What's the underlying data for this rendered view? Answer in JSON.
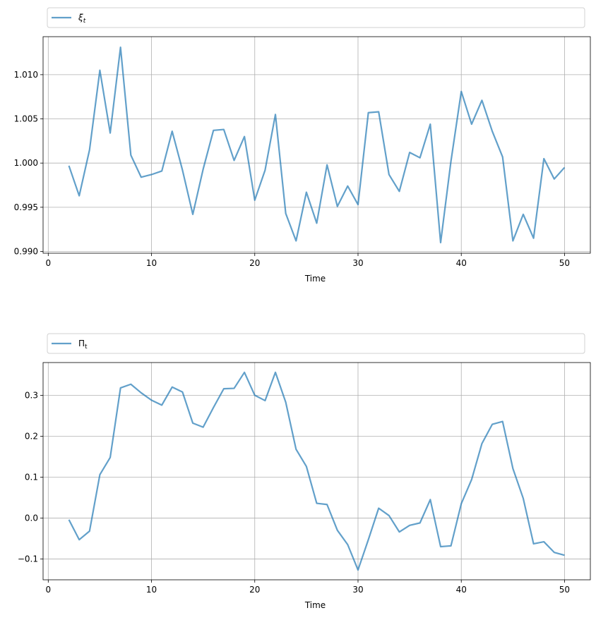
{
  "chart_data": [
    {
      "type": "line",
      "xlabel": "Time",
      "ylabel": "",
      "xlim": [
        -0.5,
        52.5
      ],
      "ylim": [
        0.9898,
        1.0143
      ],
      "xticks": [
        0,
        10,
        20,
        30,
        40,
        50
      ],
      "xtick_labels": [
        "0",
        "10",
        "20",
        "30",
        "40",
        "50"
      ],
      "yticks": [
        0.99,
        0.995,
        1.0,
        1.005,
        1.01
      ],
      "ytick_labels": [
        "0.990",
        "0.995",
        "1.000",
        "1.005",
        "1.010"
      ],
      "grid": true,
      "legend_position": "above-plot",
      "color": "#1f77b4",
      "series": [
        {
          "name": "ξt",
          "name_base": "ξ",
          "name_sub": "t",
          "x": [
            2,
            3,
            4,
            5,
            6,
            7,
            8,
            9,
            10,
            11,
            12,
            13,
            14,
            15,
            16,
            17,
            18,
            19,
            20,
            21,
            22,
            23,
            24,
            25,
            26,
            27,
            28,
            29,
            30,
            31,
            32,
            33,
            34,
            35,
            36,
            37,
            38,
            39,
            40,
            41,
            42,
            43,
            44,
            45,
            46,
            47,
            48,
            49,
            50
          ],
          "values": [
            0.9997,
            0.9963,
            1.0015,
            1.0105,
            1.0034,
            1.0131,
            1.0009,
            0.9984,
            0.9987,
            0.9991,
            1.0036,
            0.9992,
            0.9942,
            0.9993,
            1.0037,
            1.0038,
            1.0003,
            1.003,
            0.9958,
            0.9992,
            1.0055,
            0.9943,
            0.9912,
            0.9967,
            0.9932,
            0.9998,
            0.9951,
            0.9974,
            0.9953,
            1.0057,
            1.0058,
            0.9987,
            0.9968,
            1.0012,
            1.0006,
            1.0044,
            0.991,
            1.0002,
            1.0081,
            1.0044,
            1.0071,
            1.0036,
            1.0007,
            0.9912,
            0.9942,
            0.9915,
            1.0005,
            0.9982,
            0.9995
          ]
        }
      ]
    },
    {
      "type": "line",
      "xlabel": "Time",
      "ylabel": "",
      "xlim": [
        -0.5,
        52.5
      ],
      "ylim": [
        -0.151,
        0.38
      ],
      "xticks": [
        0,
        10,
        20,
        30,
        40,
        50
      ],
      "xtick_labels": [
        "0",
        "10",
        "20",
        "30",
        "40",
        "50"
      ],
      "yticks": [
        -0.1,
        0.0,
        0.1,
        0.2,
        0.3
      ],
      "ytick_labels": [
        "−0.1",
        "0.0",
        "0.1",
        "0.2",
        "0.3"
      ],
      "grid": true,
      "legend_position": "above-plot",
      "color": "#1f77b4",
      "series": [
        {
          "name": "Πt",
          "name_base": "Π",
          "name_sub": "t",
          "x": [
            2,
            3,
            4,
            5,
            6,
            7,
            8,
            9,
            10,
            11,
            12,
            13,
            14,
            15,
            16,
            17,
            18,
            19,
            20,
            21,
            22,
            23,
            24,
            25,
            26,
            27,
            28,
            29,
            30,
            31,
            32,
            33,
            34,
            35,
            36,
            37,
            38,
            39,
            40,
            41,
            42,
            43,
            44,
            45,
            46,
            47,
            48,
            49,
            50
          ],
          "values": [
            -0.004,
            -0.053,
            -0.032,
            0.106,
            0.148,
            0.318,
            0.327,
            0.306,
            0.288,
            0.276,
            0.32,
            0.308,
            0.232,
            0.222,
            0.27,
            0.316,
            0.317,
            0.356,
            0.3,
            0.287,
            0.356,
            0.283,
            0.168,
            0.126,
            0.036,
            0.033,
            -0.03,
            -0.065,
            -0.127,
            -0.053,
            0.024,
            0.006,
            -0.034,
            -0.018,
            -0.012,
            0.045,
            -0.07,
            -0.068,
            0.035,
            0.094,
            0.182,
            0.229,
            0.236,
            0.121,
            0.048,
            -0.063,
            -0.058,
            -0.084,
            -0.091
          ]
        }
      ]
    }
  ]
}
